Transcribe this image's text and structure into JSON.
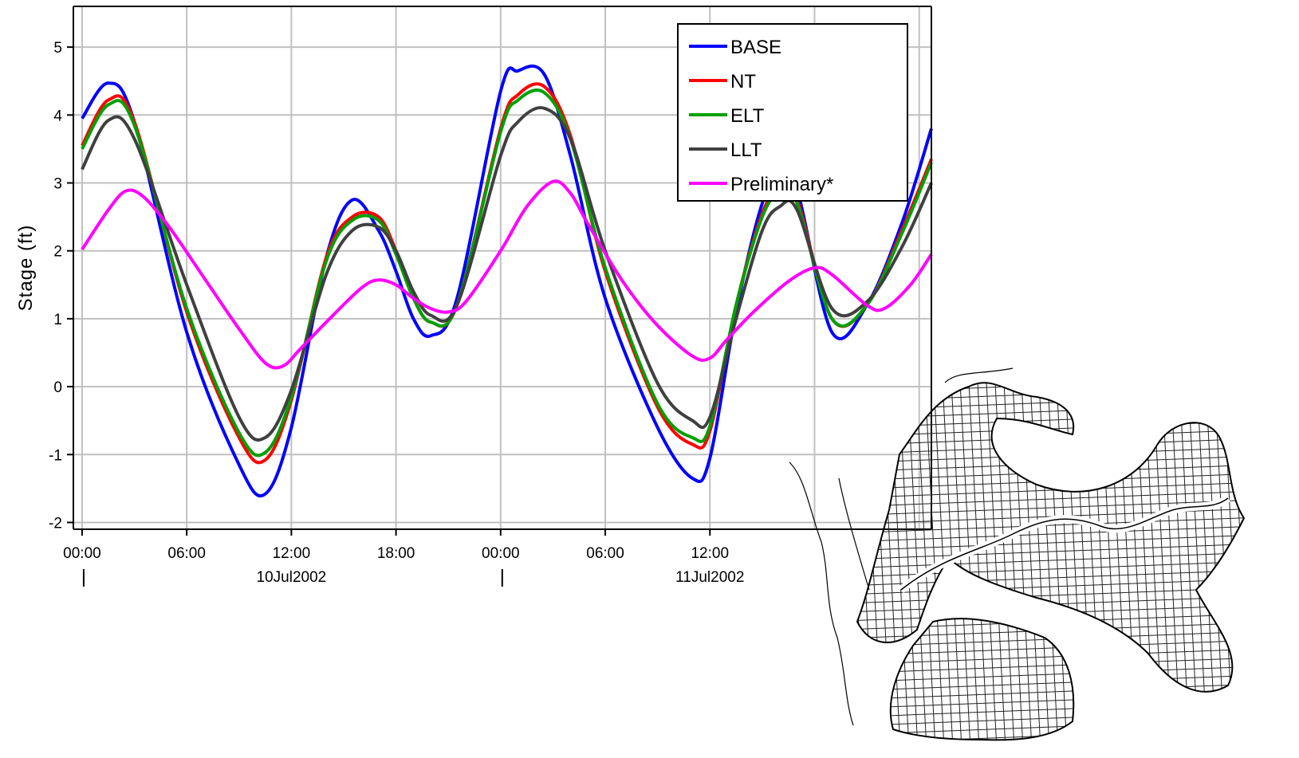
{
  "chart_data": {
    "type": "line",
    "ylabel": "Stage (ft)",
    "xlabel": "",
    "ylim": [
      -2.1,
      5.6
    ],
    "yticks": [
      -2,
      -1,
      0,
      1,
      2,
      3,
      4,
      5
    ],
    "yticklabels": [
      "-2",
      "-1",
      "0",
      "1",
      "2",
      "3",
      "4",
      "5"
    ],
    "x_unit": "hours from 00:00 10Jul2002",
    "xlim": [
      -0.5,
      48.7
    ],
    "xticks": [
      0,
      6,
      12,
      18,
      24,
      30,
      36
    ],
    "xticklabels": [
      "00:00",
      "06:00",
      "12:00",
      "18:00",
      "00:00",
      "06:00",
      "12:00"
    ],
    "date_labels": [
      {
        "hour": 12,
        "text": "10Jul2002"
      },
      {
        "hour": 36,
        "text": "11Jul2002"
      }
    ],
    "day_markers": [
      0,
      24
    ],
    "grid": true,
    "legend_position": "top-right",
    "inset": "model grid mesh map (bottom-right)",
    "series": [
      {
        "name": "BASE",
        "color": "#0000ff",
        "x": [
          0,
          1.5,
          3,
          6,
          9,
          10.5,
          12,
          14,
          15.5,
          17,
          18,
          19,
          20,
          21.5,
          24,
          25,
          26.5,
          28,
          30,
          33,
          35,
          36,
          37.5,
          39,
          40,
          41,
          43,
          45,
          47,
          48.7
        ],
        "y": [
          3.95,
          4.47,
          3.9,
          0.8,
          -1.15,
          -1.58,
          -0.6,
          1.9,
          2.75,
          2.3,
          1.7,
          1.0,
          0.75,
          1.3,
          4.35,
          4.65,
          4.6,
          3.4,
          1.3,
          -0.6,
          -1.35,
          -1.05,
          1.1,
          2.7,
          3.1,
          2.9,
          0.8,
          1.2,
          2.4,
          3.8
        ]
      },
      {
        "name": "NT",
        "color": "#ff0000",
        "x": [
          0,
          1.5,
          3,
          6,
          9,
          10.5,
          12,
          14,
          15.5,
          17,
          18,
          19,
          20,
          21.5,
          24,
          25,
          26.5,
          28,
          30,
          33,
          35,
          36,
          37.5,
          39,
          40,
          41,
          43,
          45,
          47,
          48.7
        ],
        "y": [
          3.55,
          4.22,
          3.9,
          1.1,
          -0.75,
          -1.08,
          -0.2,
          1.9,
          2.5,
          2.5,
          2.0,
          1.3,
          0.95,
          1.2,
          3.8,
          4.3,
          4.42,
          3.7,
          1.7,
          -0.3,
          -0.85,
          -0.65,
          1.2,
          2.55,
          2.9,
          2.75,
          1.0,
          1.2,
          2.3,
          3.35
        ]
      },
      {
        "name": "ELT",
        "color": "#00a000",
        "x": [
          0,
          1.5,
          3,
          6,
          9,
          10.5,
          12,
          14,
          15.5,
          17,
          18,
          19,
          20,
          21.5,
          24,
          25,
          26.5,
          28,
          30,
          33,
          35,
          36,
          37.5,
          39,
          40,
          41,
          43,
          45,
          47,
          48.7
        ],
        "y": [
          3.5,
          4.15,
          3.85,
          1.15,
          -0.68,
          -0.97,
          -0.15,
          1.85,
          2.45,
          2.45,
          1.95,
          1.3,
          0.95,
          1.2,
          3.75,
          4.22,
          4.33,
          3.65,
          1.75,
          -0.25,
          -0.75,
          -0.58,
          1.2,
          2.5,
          2.85,
          2.7,
          1.0,
          1.2,
          2.25,
          3.3
        ]
      },
      {
        "name": "LLT",
        "color": "#404040",
        "x": [
          0,
          1.5,
          3,
          6,
          9,
          10.5,
          12,
          14,
          15.5,
          17,
          18,
          19,
          20,
          21.5,
          24,
          25,
          26.5,
          28,
          30,
          33,
          35,
          36,
          37.5,
          39,
          40,
          41,
          43,
          45,
          47,
          48.7
        ],
        "y": [
          3.2,
          3.92,
          3.65,
          1.5,
          -0.45,
          -0.75,
          -0.05,
          1.65,
          2.3,
          2.35,
          2.0,
          1.4,
          1.05,
          1.2,
          3.4,
          3.9,
          4.1,
          3.65,
          2.0,
          0.05,
          -0.5,
          -0.45,
          1.0,
          2.3,
          2.65,
          2.6,
          1.15,
          1.25,
          2.05,
          3.0
        ]
      },
      {
        "name": "Preliminary*",
        "color": "#ff00ff",
        "x": [
          0,
          1.5,
          2.5,
          3.5,
          5,
          7,
          9,
          10.5,
          11.5,
          12.5,
          14,
          16,
          17,
          18,
          19,
          20,
          21,
          22,
          24,
          25.5,
          27,
          28,
          29,
          31,
          33,
          35,
          36,
          37,
          38.5,
          40.5,
          42,
          43,
          45,
          46,
          47.5,
          48.7
        ],
        "y": [
          2.02,
          2.6,
          2.88,
          2.8,
          2.35,
          1.6,
          0.85,
          0.35,
          0.3,
          0.55,
          0.95,
          1.45,
          1.57,
          1.5,
          1.3,
          1.15,
          1.1,
          1.25,
          2.0,
          2.65,
          3.02,
          2.85,
          2.4,
          1.55,
          0.9,
          0.45,
          0.42,
          0.7,
          1.1,
          1.55,
          1.75,
          1.65,
          1.2,
          1.15,
          1.5,
          1.95
        ]
      }
    ]
  }
}
